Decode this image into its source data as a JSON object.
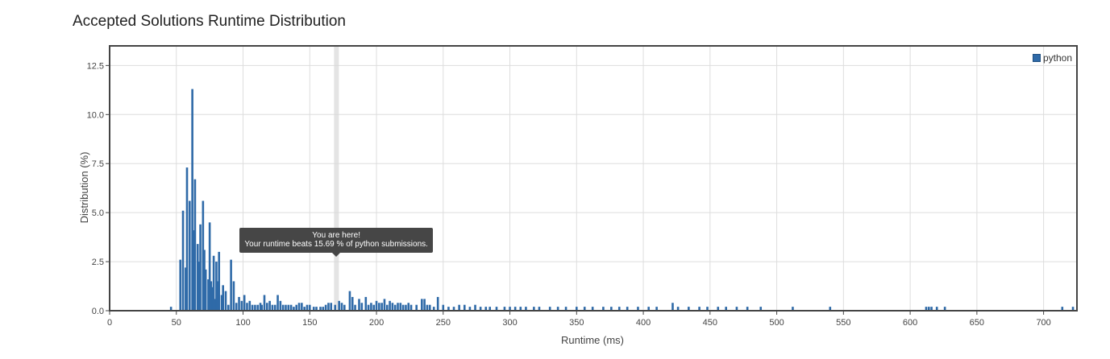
{
  "title": "Accepted Solutions Runtime Distribution",
  "chart_data": {
    "type": "bar",
    "xlabel": "Runtime (ms)",
    "ylabel": "Distribution (%)",
    "xlim": [
      0,
      725
    ],
    "ylim": [
      0,
      13.5
    ],
    "x_ticks": [
      0,
      50,
      100,
      150,
      200,
      250,
      300,
      350,
      400,
      450,
      500,
      550,
      600,
      650,
      700
    ],
    "y_ticks": [
      "0.0",
      "2.5",
      "5.0",
      "7.5",
      "10.0",
      "12.5"
    ],
    "grid": true,
    "legend_position": "top-right",
    "series": [
      {
        "name": "python",
        "color": "#2f6aa8",
        "points": [
          [
            46,
            0.2
          ],
          [
            53,
            2.6
          ],
          [
            55,
            5.1
          ],
          [
            57,
            2.2
          ],
          [
            58,
            7.3
          ],
          [
            60,
            5.6
          ],
          [
            62,
            11.3
          ],
          [
            63,
            4.1
          ],
          [
            64,
            6.7
          ],
          [
            66,
            3.4
          ],
          [
            67,
            2.5
          ],
          [
            68,
            4.4
          ],
          [
            70,
            5.6
          ],
          [
            71,
            3.1
          ],
          [
            72,
            2.1
          ],
          [
            74,
            1.6
          ],
          [
            75,
            4.5
          ],
          [
            76,
            1.5
          ],
          [
            77,
            1.2
          ],
          [
            78,
            2.8
          ],
          [
            79,
            0.6
          ],
          [
            80,
            2.5
          ],
          [
            81,
            1.5
          ],
          [
            82,
            3.0
          ],
          [
            84,
            0.8
          ],
          [
            85,
            1.3
          ],
          [
            87,
            1.0
          ],
          [
            89,
            0.3
          ],
          [
            91,
            2.6
          ],
          [
            93,
            1.5
          ],
          [
            95,
            0.4
          ],
          [
            97,
            0.7
          ],
          [
            99,
            0.5
          ],
          [
            101,
            0.8
          ],
          [
            103,
            0.4
          ],
          [
            105,
            0.5
          ],
          [
            107,
            0.3
          ],
          [
            109,
            0.3
          ],
          [
            111,
            0.3
          ],
          [
            113,
            0.4
          ],
          [
            114,
            0.3
          ],
          [
            116,
            0.8
          ],
          [
            118,
            0.4
          ],
          [
            120,
            0.5
          ],
          [
            122,
            0.3
          ],
          [
            124,
            0.3
          ],
          [
            126,
            0.8
          ],
          [
            128,
            0.5
          ],
          [
            130,
            0.3
          ],
          [
            132,
            0.3
          ],
          [
            134,
            0.3
          ],
          [
            136,
            0.3
          ],
          [
            138,
            0.2
          ],
          [
            140,
            0.3
          ],
          [
            142,
            0.4
          ],
          [
            144,
            0.4
          ],
          [
            146,
            0.2
          ],
          [
            148,
            0.3
          ],
          [
            150,
            0.3
          ],
          [
            153,
            0.2
          ],
          [
            155,
            0.2
          ],
          [
            158,
            0.2
          ],
          [
            160,
            0.2
          ],
          [
            162,
            0.3
          ],
          [
            164,
            0.4
          ],
          [
            166,
            0.4
          ],
          [
            169,
            0.3
          ],
          [
            172,
            0.5
          ],
          [
            174,
            0.4
          ],
          [
            176,
            0.3
          ],
          [
            180,
            1.0
          ],
          [
            182,
            0.7
          ],
          [
            184,
            0.3
          ],
          [
            187,
            0.6
          ],
          [
            189,
            0.4
          ],
          [
            192,
            0.7
          ],
          [
            194,
            0.3
          ],
          [
            196,
            0.4
          ],
          [
            198,
            0.3
          ],
          [
            200,
            0.5
          ],
          [
            202,
            0.4
          ],
          [
            204,
            0.4
          ],
          [
            206,
            0.6
          ],
          [
            208,
            0.3
          ],
          [
            210,
            0.5
          ],
          [
            212,
            0.4
          ],
          [
            214,
            0.3
          ],
          [
            216,
            0.4
          ],
          [
            218,
            0.4
          ],
          [
            220,
            0.3
          ],
          [
            222,
            0.3
          ],
          [
            224,
            0.4
          ],
          [
            226,
            0.3
          ],
          [
            230,
            0.3
          ],
          [
            234,
            0.6
          ],
          [
            236,
            0.6
          ],
          [
            238,
            0.3
          ],
          [
            240,
            0.3
          ],
          [
            243,
            0.2
          ],
          [
            246,
            0.7
          ],
          [
            250,
            0.3
          ],
          [
            254,
            0.2
          ],
          [
            258,
            0.2
          ],
          [
            262,
            0.3
          ],
          [
            266,
            0.3
          ],
          [
            270,
            0.2
          ],
          [
            274,
            0.3
          ],
          [
            278,
            0.2
          ],
          [
            282,
            0.2
          ],
          [
            285,
            0.2
          ],
          [
            290,
            0.2
          ],
          [
            296,
            0.2
          ],
          [
            300,
            0.2
          ],
          [
            304,
            0.2
          ],
          [
            308,
            0.2
          ],
          [
            312,
            0.2
          ],
          [
            318,
            0.2
          ],
          [
            322,
            0.2
          ],
          [
            330,
            0.2
          ],
          [
            336,
            0.2
          ],
          [
            342,
            0.2
          ],
          [
            350,
            0.2
          ],
          [
            356,
            0.2
          ],
          [
            362,
            0.2
          ],
          [
            370,
            0.2
          ],
          [
            376,
            0.2
          ],
          [
            382,
            0.2
          ],
          [
            388,
            0.2
          ],
          [
            396,
            0.2
          ],
          [
            404,
            0.2
          ],
          [
            410,
            0.2
          ],
          [
            422,
            0.4
          ],
          [
            426,
            0.2
          ],
          [
            434,
            0.2
          ],
          [
            442,
            0.2
          ],
          [
            448,
            0.2
          ],
          [
            456,
            0.2
          ],
          [
            462,
            0.2
          ],
          [
            470,
            0.2
          ],
          [
            478,
            0.2
          ],
          [
            488,
            0.2
          ],
          [
            512,
            0.2
          ],
          [
            540,
            0.2
          ],
          [
            612,
            0.2
          ],
          [
            614,
            0.2
          ],
          [
            616,
            0.2
          ],
          [
            620,
            0.2
          ],
          [
            626,
            0.2
          ],
          [
            714,
            0.2
          ],
          [
            722,
            0.2
          ]
        ]
      }
    ],
    "highlight_x": 170,
    "tooltip": {
      "line1": "You are here!",
      "line2": "Your runtime beats 15.69 % of python submissions."
    }
  }
}
